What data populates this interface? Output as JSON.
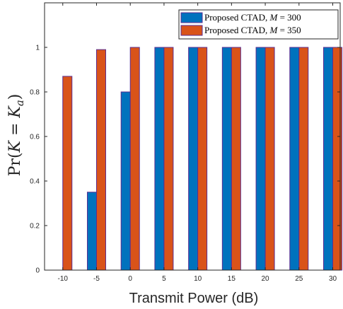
{
  "chart_data": {
    "type": "bar",
    "categories": [
      "-10",
      "-5",
      "0",
      "5",
      "10",
      "15",
      "20",
      "25",
      "30"
    ],
    "series": [
      {
        "name": "Proposed CTAD, M = 300",
        "color": "#0072BD",
        "values": [
          0.0,
          0.35,
          0.8,
          1.0,
          1.0,
          1.0,
          1.0,
          1.0,
          1.0
        ]
      },
      {
        "name": "Proposed CTAD, M = 350",
        "color": "#D95319",
        "values": [
          0.87,
          0.99,
          1.0,
          1.0,
          1.0,
          1.0,
          1.0,
          1.0,
          1.0
        ]
      }
    ],
    "legend_entries": [
      "Proposed CTAD, M = 300",
      "Proposed CTAD, M = 350"
    ],
    "xlabel": "Transmit Power (dB)",
    "ylabel": "Pr(K = K_a)",
    "ylabel_parts": {
      "pre": "Pr(",
      "K": "K",
      "eq": " = ",
      "Ka": "K",
      "sub": "a",
      "post": ")"
    },
    "ylim": [
      0,
      1.2
    ],
    "yticks": [
      "0",
      "0.2",
      "0.4",
      "0.6",
      "0.8",
      "1"
    ],
    "ytick_values": [
      0,
      0.2,
      0.4,
      0.6,
      0.8,
      1.0
    ],
    "legend_position": "top-right",
    "grid": false,
    "edge_color": "#5a2d91"
  }
}
